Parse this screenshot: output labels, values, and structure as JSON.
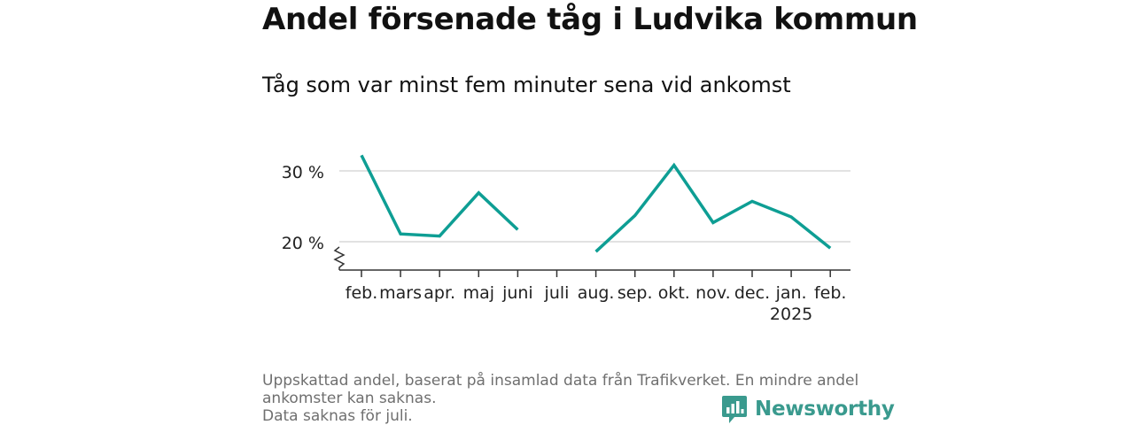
{
  "title": "Andel försenade tåg i Ludvika kommun",
  "subtitle": "Tåg som var minst fem minuter sena vid ankomst",
  "chart_data": {
    "type": "line",
    "categories": [
      "feb.",
      "mars",
      "apr.",
      "maj",
      "juni",
      "juli",
      "aug.",
      "sep.",
      "okt.",
      "nov.",
      "dec.",
      "jan.",
      "feb."
    ],
    "year_labels": [
      "",
      "",
      "",
      "",
      "",
      "",
      "",
      "",
      "",
      "",
      "",
      "2025",
      ""
    ],
    "values": [
      32.2,
      21.1,
      20.8,
      26.9,
      21.7,
      null,
      18.6,
      23.7,
      30.8,
      22.7,
      25.7,
      23.5,
      19.1
    ],
    "y_ticks": [
      20,
      30
    ],
    "y_tick_labels": [
      "20 %",
      "30 %"
    ],
    "ylim": [
      16,
      33
    ],
    "axis_break": true,
    "grid": true,
    "line_color": "#0e9e94"
  },
  "footnote": {
    "line1": "Uppskattad andel, baserat på insamlad data från Trafikverket. En mindre andel ankomster kan saknas.",
    "line2": "Data saknas för juli."
  },
  "brand": {
    "name": "Newsworthy",
    "color": "#3a9a8e",
    "icon": "newsworthy-logo-icon"
  }
}
